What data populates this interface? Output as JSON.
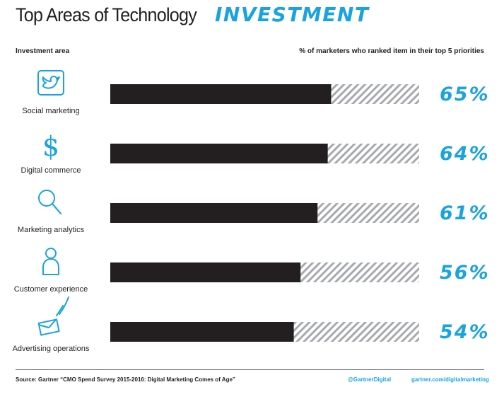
{
  "title": {
    "main": "Top Areas of Technology",
    "accent": "INVESTMENT"
  },
  "column_headers": {
    "left": "Investment area",
    "right": "% of marketers who ranked item in their top 5 priorities"
  },
  "chart_data": {
    "type": "bar",
    "orientation": "horizontal",
    "title": "Top Areas of Technology INVESTMENT",
    "xlabel": "% of marketers who ranked item in their top 5 priorities",
    "ylabel": "Investment area",
    "categories": [
      "Social marketing",
      "Digital commerce",
      "Marketing analytics",
      "Customer experience",
      "Advertising operations"
    ],
    "values": [
      65,
      64,
      61,
      56,
      54
    ],
    "value_labels": [
      "65%",
      "64%",
      "61%",
      "56%",
      "54%"
    ],
    "icons": [
      "twitter-bird-icon",
      "dollar-sign-icon",
      "magnifying-glass-icon",
      "person-icon",
      "envelope-icon"
    ],
    "xlim": [
      0,
      100
    ],
    "grid": false,
    "legend": "none"
  },
  "colors": {
    "bar": "#231f20",
    "hatch": "#a7a9ac",
    "accent": "#1aa3dd",
    "text": "#231f20"
  },
  "footer": {
    "source": "Source: Gartner “CMO Spend Survey 2015-2016: Digital Marketing Comes of Age”",
    "twitter": "@GartnerDigital",
    "site": "gartner.com/digitalmarketing"
  }
}
